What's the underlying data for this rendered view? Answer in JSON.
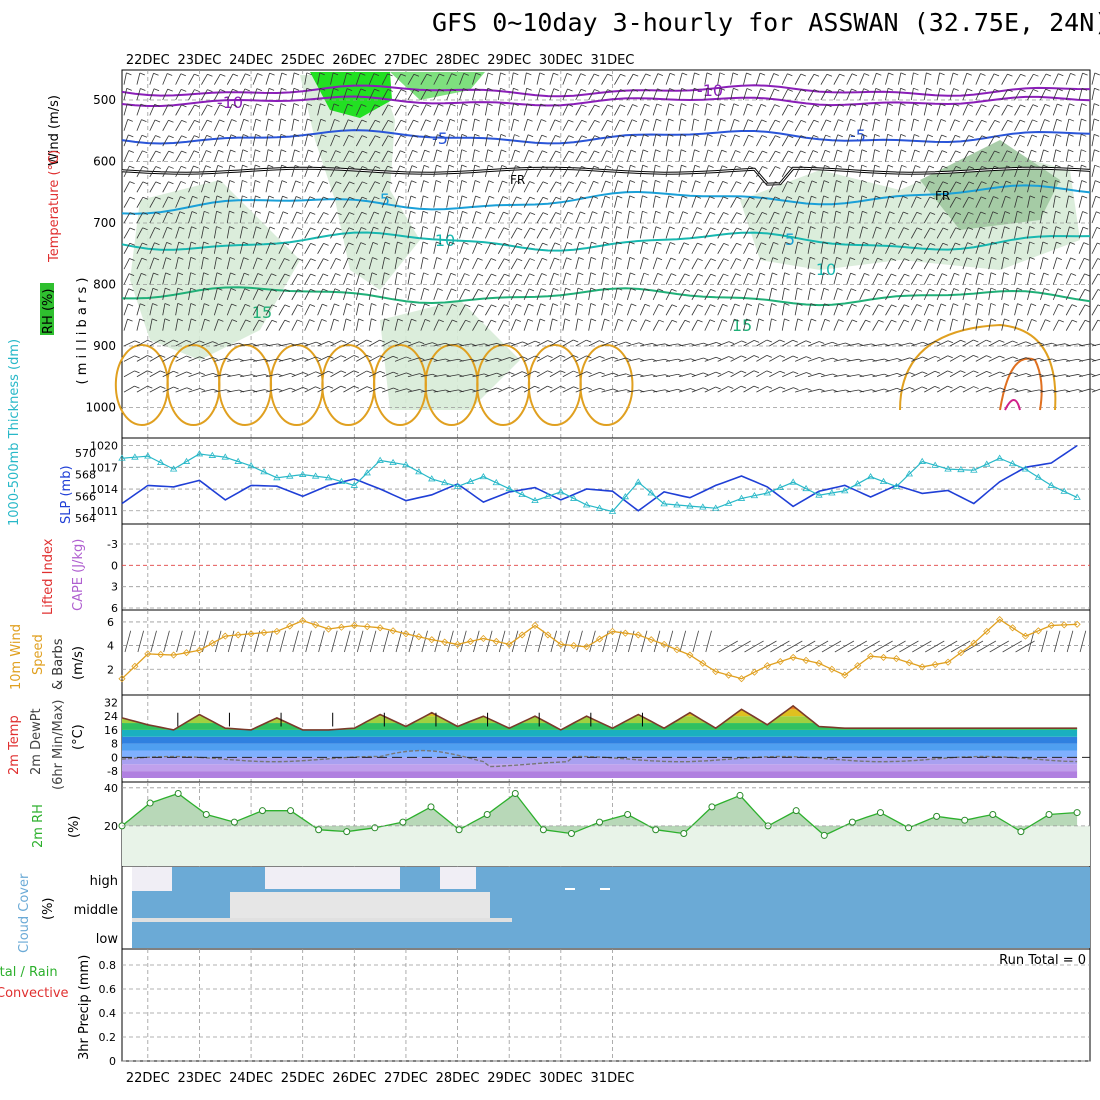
{
  "title": "GFS 0~10day 3-hourly for ASSWAN (32.75E, 24N)",
  "dates": [
    "22DEC",
    "23DEC",
    "24DEC",
    "25DEC",
    "26DEC",
    "27DEC",
    "28DEC",
    "29DEC",
    "30DEC",
    "31DEC"
  ],
  "colors": {
    "grid": "#999999",
    "frame": "#000000",
    "slp": "#1f3fd6",
    "thick": "#28b8c8",
    "temp_orange": "#e0a020",
    "rh_green": "#2db02d",
    "cape": "#b060d0",
    "cloud": "#6baad6"
  },
  "panels": {
    "upper": {
      "ylabel_wind": "Wind (m/s)",
      "ylabel_temp": "Temperature (°C)",
      "ylabel_rh": "RH (%)",
      "ylabel_mb": "( m i l l i b a r s )",
      "levels": [
        500,
        600,
        700,
        800,
        900,
        1000
      ],
      "freezing_label": "FR",
      "isotherms": [
        {
          "label": "-10",
          "color": "#8a1fb8"
        },
        {
          "label": "-5",
          "color": "#2a55d8"
        },
        {
          "label": "5",
          "color": "#1aa0d8"
        },
        {
          "label": "10",
          "color": "#18b8b0"
        },
        {
          "label": "15",
          "color": "#20b078"
        }
      ]
    },
    "slp": {
      "ylabel_thick": "1000-500mb Thickness (dm)",
      "ylabel_slp": "SLP (mb)",
      "thick_ticks": [
        564,
        566,
        568,
        570
      ],
      "slp_ticks": [
        1011,
        1014,
        1017,
        1020
      ]
    },
    "cape": {
      "ylabel_li": "Lifted Index",
      "ylabel_cape": "CAPE (J/kg)",
      "ticks": [
        -3,
        0,
        3,
        6
      ]
    },
    "wind": {
      "ylabel_wind": "10m Wind",
      "ylabel_speed": "Speed",
      "ylabel_barbs": "& Barbs",
      "ylabel_unit": "(m/s)",
      "ticks": [
        2,
        4,
        6
      ]
    },
    "temp": {
      "ylabel_1": "2m Temp",
      "ylabel_2": "2m DewPt",
      "ylabel_3": "(6hr Min/Max)",
      "ylabel_unit": "(°C)",
      "ticks": [
        32,
        24,
        16,
        8,
        0,
        -8
      ]
    },
    "rh": {
      "ylabel": "2m RH",
      "ylabel_unit": "(%)",
      "ticks": [
        20,
        40
      ]
    },
    "cloud": {
      "ylabel": "Cloud Cover",
      "ylabel_unit": "(%)",
      "levels": [
        "high",
        "middle",
        "low"
      ]
    },
    "precip": {
      "ylabel_1": "Total / Rain",
      "ylabel_2": "Convective",
      "ylabel_3": "3hr Precip (mm)",
      "run_total": "Run Total = 0",
      "ticks": [
        0,
        0.2,
        0.4,
        0.6,
        0.8
      ]
    }
  },
  "chart_data": [
    {
      "type": "line",
      "title": "1000-500mb Thickness (dm)",
      "x": "3-hourly steps from 21DEC 12Z (80 steps)",
      "ylim": [
        564,
        571
      ],
      "keypoints": [
        [
          0,
          569.5
        ],
        [
          4,
          569.7
        ],
        [
          8,
          568.5
        ],
        [
          12,
          569.9
        ],
        [
          16,
          569.6
        ],
        [
          20,
          568.8
        ],
        [
          24,
          567.7
        ],
        [
          28,
          568.0
        ],
        [
          32,
          567.7
        ],
        [
          36,
          567.0
        ],
        [
          40,
          569.3
        ],
        [
          44,
          568.9
        ],
        [
          48,
          567.6
        ],
        [
          52,
          566.9
        ],
        [
          56,
          567.8
        ],
        [
          60,
          566.7
        ],
        [
          64,
          565.6
        ],
        [
          68,
          566.4
        ],
        [
          72,
          565.2
        ],
        [
          76,
          564.6
        ],
        [
          80,
          567.3
        ],
        [
          84,
          565.3
        ],
        [
          88,
          565.1
        ],
        [
          92,
          564.9
        ],
        [
          96,
          565.8
        ],
        [
          100,
          566.3
        ],
        [
          104,
          567.3
        ],
        [
          108,
          566.1
        ],
        [
          112,
          566.5
        ],
        [
          116,
          567.8
        ],
        [
          120,
          566.9
        ],
        [
          124,
          569.2
        ],
        [
          128,
          568.5
        ],
        [
          132,
          568.4
        ],
        [
          136,
          569.5
        ],
        [
          140,
          568.5
        ],
        [
          144,
          567.0
        ],
        [
          148,
          565.9
        ]
      ]
    },
    {
      "type": "line",
      "title": "SLP (mb)",
      "ylim": [
        1010,
        1020.5
      ],
      "keypoints": [
        [
          0,
          1012.0
        ],
        [
          4,
          1014.5
        ],
        [
          8,
          1014.3
        ],
        [
          12,
          1015.2
        ],
        [
          16,
          1012.5
        ],
        [
          20,
          1014.5
        ],
        [
          24,
          1014.4
        ],
        [
          28,
          1013.0
        ],
        [
          32,
          1014.5
        ],
        [
          36,
          1015.4
        ],
        [
          40,
          1014.0
        ],
        [
          44,
          1012.4
        ],
        [
          48,
          1013.2
        ],
        [
          52,
          1014.7
        ],
        [
          56,
          1012.2
        ],
        [
          60,
          1013.6
        ],
        [
          64,
          1014.2
        ],
        [
          68,
          1012.5
        ],
        [
          72,
          1014.0
        ],
        [
          76,
          1013.7
        ],
        [
          80,
          1011.0
        ],
        [
          84,
          1013.6
        ],
        [
          88,
          1012.8
        ],
        [
          92,
          1014.5
        ],
        [
          96,
          1015.8
        ],
        [
          100,
          1014.3
        ],
        [
          104,
          1011.6
        ],
        [
          108,
          1013.7
        ],
        [
          112,
          1014.5
        ],
        [
          116,
          1012.9
        ],
        [
          120,
          1014.5
        ],
        [
          124,
          1013.4
        ],
        [
          128,
          1013.8
        ],
        [
          132,
          1012.0
        ],
        [
          136,
          1015.0
        ],
        [
          140,
          1017.0
        ],
        [
          144,
          1017.6
        ],
        [
          148,
          1020.0
        ]
      ]
    },
    {
      "type": "line",
      "title": "10m Wind Speed (m/s)",
      "ylim": [
        0.5,
        6.5
      ],
      "keypoints": [
        [
          0,
          1.2
        ],
        [
          4,
          3.3
        ],
        [
          8,
          3.2
        ],
        [
          12,
          3.6
        ],
        [
          16,
          4.8
        ],
        [
          20,
          5.0
        ],
        [
          24,
          5.2
        ],
        [
          28,
          6.1
        ],
        [
          32,
          5.4
        ],
        [
          36,
          5.7
        ],
        [
          40,
          5.5
        ],
        [
          44,
          5.0
        ],
        [
          48,
          4.5
        ],
        [
          52,
          4.1
        ],
        [
          56,
          4.6
        ],
        [
          60,
          4.1
        ],
        [
          64,
          5.7
        ],
        [
          68,
          4.1
        ],
        [
          72,
          3.9
        ],
        [
          76,
          5.2
        ],
        [
          80,
          4.9
        ],
        [
          84,
          4.1
        ],
        [
          88,
          3.2
        ],
        [
          92,
          1.8
        ],
        [
          96,
          1.2
        ],
        [
          100,
          2.3
        ],
        [
          104,
          3.0
        ],
        [
          108,
          2.5
        ],
        [
          112,
          1.5
        ],
        [
          116,
          3.1
        ],
        [
          120,
          2.9
        ],
        [
          124,
          2.2
        ],
        [
          128,
          2.6
        ],
        [
          132,
          4.2
        ],
        [
          136,
          6.2
        ],
        [
          140,
          4.8
        ],
        [
          144,
          5.7
        ],
        [
          148,
          5.8
        ]
      ]
    },
    {
      "type": "area",
      "title": "2m Temp (°C)",
      "ylim": [
        -12,
        34
      ],
      "keypoints": [
        [
          0,
          23
        ],
        [
          4,
          19
        ],
        [
          8,
          16
        ],
        [
          12,
          25
        ],
        [
          16,
          17
        ],
        [
          20,
          16
        ],
        [
          24,
          23
        ],
        [
          28,
          16
        ],
        [
          32,
          16
        ],
        [
          36,
          17
        ],
        [
          40,
          25
        ],
        [
          44,
          18
        ],
        [
          48,
          26
        ],
        [
          52,
          18
        ],
        [
          56,
          24
        ],
        [
          60,
          17
        ],
        [
          64,
          24
        ],
        [
          68,
          16
        ],
        [
          72,
          24
        ],
        [
          76,
          17
        ],
        [
          80,
          25
        ],
        [
          84,
          17
        ],
        [
          88,
          26
        ],
        [
          92,
          17
        ],
        [
          96,
          28
        ],
        [
          100,
          19
        ],
        [
          104,
          30
        ],
        [
          108,
          18
        ],
        [
          112,
          17
        ]
      ]
    },
    {
      "type": "area",
      "title": "2m RH (%)",
      "ylim": [
        0,
        42
      ],
      "keypoints": [
        [
          0,
          20
        ],
        [
          4,
          32
        ],
        [
          8,
          37
        ],
        [
          12,
          26
        ],
        [
          16,
          22
        ],
        [
          20,
          28
        ],
        [
          24,
          28
        ],
        [
          28,
          18
        ],
        [
          32,
          17
        ],
        [
          36,
          19
        ],
        [
          40,
          22
        ],
        [
          44,
          30
        ],
        [
          48,
          18
        ],
        [
          52,
          26
        ],
        [
          56,
          37
        ],
        [
          60,
          18
        ],
        [
          64,
          16
        ],
        [
          68,
          22
        ],
        [
          72,
          26
        ],
        [
          76,
          18
        ],
        [
          80,
          16
        ],
        [
          84,
          30
        ],
        [
          88,
          36
        ],
        [
          92,
          20
        ],
        [
          96,
          28
        ],
        [
          100,
          15
        ],
        [
          104,
          22
        ],
        [
          108,
          27
        ],
        [
          112,
          19
        ],
        [
          116,
          25
        ],
        [
          120,
          23
        ],
        [
          124,
          26
        ],
        [
          128,
          17
        ],
        [
          132,
          26
        ],
        [
          136,
          27
        ]
      ]
    },
    {
      "type": "line",
      "title": "3hr Precip (mm)",
      "ylim": [
        0,
        0.9
      ],
      "values_note": "all zero"
    }
  ]
}
